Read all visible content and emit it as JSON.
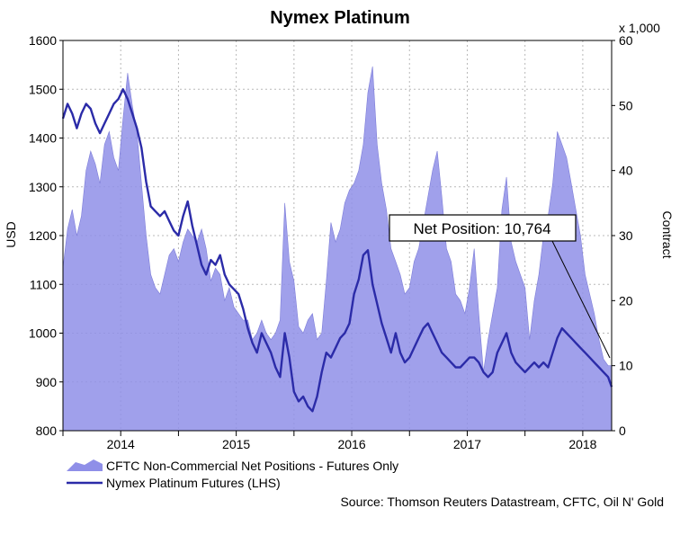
{
  "chart_data": {
    "type": "area+line",
    "title": "Nymex Platinum",
    "ylabel_left": "USD",
    "ylabel_right": "Contract",
    "right_axis_multiplier": "x 1,000",
    "ylim_left": [
      800,
      1600
    ],
    "ylim_right": [
      0,
      60
    ],
    "yticks_left": [
      "800",
      "900",
      "1000",
      "1100",
      "1200",
      "1300",
      "1400",
      "1500",
      "1600"
    ],
    "yticks_right": [
      "0",
      "10",
      "20",
      "30",
      "40",
      "50",
      "60"
    ],
    "xlim": [
      2013.5,
      2018.25
    ],
    "xticks": [
      {
        "label": "2014",
        "pos": 2014.0
      },
      {
        "label": "2015",
        "pos": 2015.0
      },
      {
        "label": "2016",
        "pos": 2016.0
      },
      {
        "label": "2017",
        "pos": 2017.0
      },
      {
        "label": "2018",
        "pos": 2018.0
      }
    ],
    "xgrid": [
      2013.5,
      2014.0,
      2014.5,
      2015.0,
      2015.5,
      2016.0,
      2016.5,
      2017.0,
      2017.5,
      2018.0
    ],
    "grid": true,
    "series": [
      {
        "name": "CFTC Non-Commercial Net Positions - Futures Only",
        "kind": "area",
        "axis": "right",
        "color": "#8f8fe8",
        "x": [
          2013.5,
          2013.54,
          2013.58,
          2013.62,
          2013.66,
          2013.7,
          2013.74,
          2013.78,
          2013.82,
          2013.86,
          2013.9,
          2013.94,
          2013.98,
          2014.02,
          2014.06,
          2014.1,
          2014.14,
          2014.18,
          2014.22,
          2014.26,
          2014.3,
          2014.34,
          2014.38,
          2014.42,
          2014.46,
          2014.5,
          2014.54,
          2014.58,
          2014.62,
          2014.66,
          2014.7,
          2014.74,
          2014.78,
          2014.82,
          2014.86,
          2014.9,
          2014.94,
          2014.98,
          2015.02,
          2015.06,
          2015.1,
          2015.14,
          2015.18,
          2015.22,
          2015.26,
          2015.3,
          2015.34,
          2015.38,
          2015.42,
          2015.46,
          2015.5,
          2015.54,
          2015.58,
          2015.62,
          2015.66,
          2015.7,
          2015.74,
          2015.78,
          2015.82,
          2015.86,
          2015.9,
          2015.94,
          2015.98,
          2016.02,
          2016.06,
          2016.1,
          2016.14,
          2016.18,
          2016.22,
          2016.26,
          2016.3,
          2016.34,
          2016.38,
          2016.42,
          2016.46,
          2016.5,
          2016.54,
          2016.58,
          2016.62,
          2016.66,
          2016.7,
          2016.74,
          2016.78,
          2016.82,
          2016.86,
          2016.9,
          2016.94,
          2016.98,
          2017.02,
          2017.06,
          2017.1,
          2017.14,
          2017.18,
          2017.22,
          2017.26,
          2017.3,
          2017.34,
          2017.38,
          2017.42,
          2017.46,
          2017.5,
          2017.54,
          2017.58,
          2017.62,
          2017.66,
          2017.7,
          2017.74,
          2017.78,
          2017.82,
          2017.86,
          2017.9,
          2017.94,
          2017.98,
          2018.02,
          2018.06,
          2018.1,
          2018.14,
          2018.18,
          2018.22,
          2018.25
        ],
        "values": [
          25,
          31,
          34,
          30,
          33,
          40,
          43,
          41,
          38,
          44,
          46,
          42,
          40,
          48,
          55,
          50,
          46,
          38,
          30,
          24,
          22,
          21,
          24,
          27,
          28,
          26,
          29,
          31,
          30,
          29,
          31,
          28,
          23,
          25,
          24,
          20,
          22,
          19,
          18,
          17,
          17,
          14,
          15,
          17,
          15,
          14,
          15,
          17,
          35,
          26,
          23,
          16,
          15,
          17,
          18,
          14,
          15,
          23,
          32,
          29,
          31,
          35,
          37,
          38,
          40,
          44,
          52,
          56,
          44,
          38,
          34,
          28,
          26,
          24,
          21,
          22,
          26,
          28,
          32,
          36,
          40,
          43,
          36,
          28,
          26,
          21,
          20,
          18,
          22,
          28,
          18,
          9,
          14,
          18,
          22,
          34,
          39,
          29,
          26,
          24,
          22,
          14,
          20,
          24,
          30,
          33,
          38,
          46,
          44,
          42,
          38,
          34,
          30,
          24,
          21,
          18,
          14,
          11,
          10,
          10
        ],
        "annotation": "Net Position: 10,764"
      },
      {
        "name": "Nymex Platinum Futures (LHS)",
        "kind": "line",
        "axis": "left",
        "color": "#2b2ba8",
        "x": [
          2013.5,
          2013.54,
          2013.58,
          2013.62,
          2013.66,
          2013.7,
          2013.74,
          2013.78,
          2013.82,
          2013.86,
          2013.9,
          2013.94,
          2013.98,
          2014.02,
          2014.06,
          2014.1,
          2014.14,
          2014.18,
          2014.22,
          2014.26,
          2014.3,
          2014.34,
          2014.38,
          2014.42,
          2014.46,
          2014.5,
          2014.54,
          2014.58,
          2014.62,
          2014.66,
          2014.7,
          2014.74,
          2014.78,
          2014.82,
          2014.86,
          2014.9,
          2014.94,
          2014.98,
          2015.02,
          2015.06,
          2015.1,
          2015.14,
          2015.18,
          2015.22,
          2015.26,
          2015.3,
          2015.34,
          2015.38,
          2015.42,
          2015.46,
          2015.5,
          2015.54,
          2015.58,
          2015.62,
          2015.66,
          2015.7,
          2015.74,
          2015.78,
          2015.82,
          2015.86,
          2015.9,
          2015.94,
          2015.98,
          2016.02,
          2016.06,
          2016.1,
          2016.14,
          2016.18,
          2016.22,
          2016.26,
          2016.3,
          2016.34,
          2016.38,
          2016.42,
          2016.46,
          2016.5,
          2016.54,
          2016.58,
          2016.62,
          2016.66,
          2016.7,
          2016.74,
          2016.78,
          2016.82,
          2016.86,
          2016.9,
          2016.94,
          2016.98,
          2017.02,
          2017.06,
          2017.1,
          2017.14,
          2017.18,
          2017.22,
          2017.26,
          2017.3,
          2017.34,
          2017.38,
          2017.42,
          2017.46,
          2017.5,
          2017.54,
          2017.58,
          2017.62,
          2017.66,
          2017.7,
          2017.74,
          2017.78,
          2017.82,
          2017.86,
          2017.9,
          2017.94,
          2017.98,
          2018.02,
          2018.06,
          2018.1,
          2018.14,
          2018.18,
          2018.22,
          2018.25
        ],
        "values": [
          1440,
          1470,
          1450,
          1420,
          1450,
          1470,
          1460,
          1430,
          1410,
          1430,
          1450,
          1470,
          1480,
          1500,
          1480,
          1450,
          1420,
          1380,
          1310,
          1260,
          1250,
          1240,
          1250,
          1230,
          1210,
          1200,
          1240,
          1270,
          1220,
          1180,
          1140,
          1120,
          1150,
          1140,
          1160,
          1120,
          1100,
          1090,
          1080,
          1050,
          1010,
          980,
          960,
          1000,
          980,
          960,
          930,
          910,
          1000,
          950,
          880,
          860,
          870,
          850,
          840,
          870,
          920,
          960,
          950,
          970,
          990,
          1000,
          1020,
          1080,
          1110,
          1160,
          1170,
          1100,
          1060,
          1020,
          990,
          960,
          1000,
          960,
          940,
          950,
          970,
          990,
          1010,
          1020,
          1000,
          980,
          960,
          950,
          940,
          930,
          930,
          940,
          950,
          950,
          940,
          920,
          910,
          920,
          960,
          980,
          1000,
          960,
          940,
          930,
          920,
          930,
          940,
          930,
          940,
          930,
          960,
          990,
          1010,
          1000,
          990,
          980,
          970,
          960,
          950,
          940,
          930,
          920,
          910,
          890
        ]
      }
    ]
  },
  "source_text": "Source: Thomson Reuters Datastream, CFTC, Oil N' Gold"
}
